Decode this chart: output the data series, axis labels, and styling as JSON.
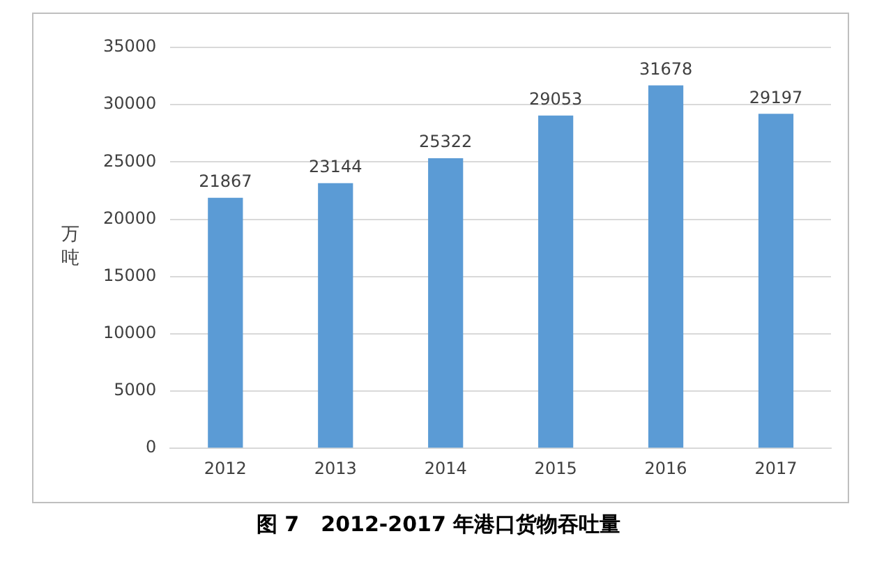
{
  "chart_data": {
    "type": "bar",
    "title": "图 7   2012-2017 年港口货物吞吐量",
    "ylabel": "万吨",
    "categories": [
      "2012",
      "2013",
      "2014",
      "2015",
      "2016",
      "2017"
    ],
    "values": [
      21867,
      23144,
      25322,
      29053,
      31678,
      29197
    ],
    "color": "#5b9bd5",
    "ylim": [
      0,
      35000
    ],
    "yticks": [
      0,
      5000,
      10000,
      15000,
      20000,
      25000,
      30000,
      35000
    ],
    "grid": "y",
    "data_labels": true,
    "legend": false
  }
}
